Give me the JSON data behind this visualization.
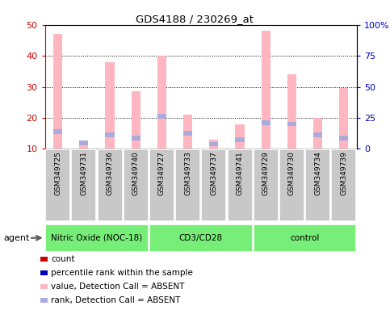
{
  "title": "GDS4188 / 230269_at",
  "samples": [
    "GSM349725",
    "GSM349731",
    "GSM349736",
    "GSM349740",
    "GSM349727",
    "GSM349733",
    "GSM349737",
    "GSM349741",
    "GSM349729",
    "GSM349730",
    "GSM349734",
    "GSM349739"
  ],
  "groups": [
    {
      "label": "Nitric Oxide (NOC-18)",
      "start": 0,
      "end": 4
    },
    {
      "label": "CD3/CD28",
      "start": 4,
      "end": 8
    },
    {
      "label": "control",
      "start": 8,
      "end": 12
    }
  ],
  "pink_values": [
    47,
    12.5,
    38,
    28.5,
    40,
    21,
    13,
    18,
    48,
    34,
    20,
    29.5
  ],
  "blue_values": [
    15.5,
    12,
    14.5,
    13.5,
    20.5,
    15,
    11.5,
    13,
    18.5,
    18,
    14.5,
    13.5
  ],
  "ylim_left": [
    10,
    50
  ],
  "ylim_right": [
    0,
    100
  ],
  "yticks_left": [
    10,
    20,
    30,
    40,
    50
  ],
  "yticks_right": [
    0,
    25,
    50,
    75,
    100
  ],
  "pink_color": "#FFB6C1",
  "blue_color": "#AAAADD",
  "red_color": "#CC0000",
  "dark_blue_color": "#0000BB",
  "group_bg": "#77EE77",
  "gray_bg": "#C8C8C8",
  "tick_label_color": "#CC0000",
  "right_tick_color": "#0000BB",
  "legend_items": [
    {
      "color": "#CC0000",
      "label": "count"
    },
    {
      "color": "#0000BB",
      "label": "percentile rank within the sample"
    },
    {
      "color": "#FFB6C1",
      "label": "value, Detection Call = ABSENT"
    },
    {
      "color": "#AAAADD",
      "label": "rank, Detection Call = ABSENT"
    }
  ]
}
